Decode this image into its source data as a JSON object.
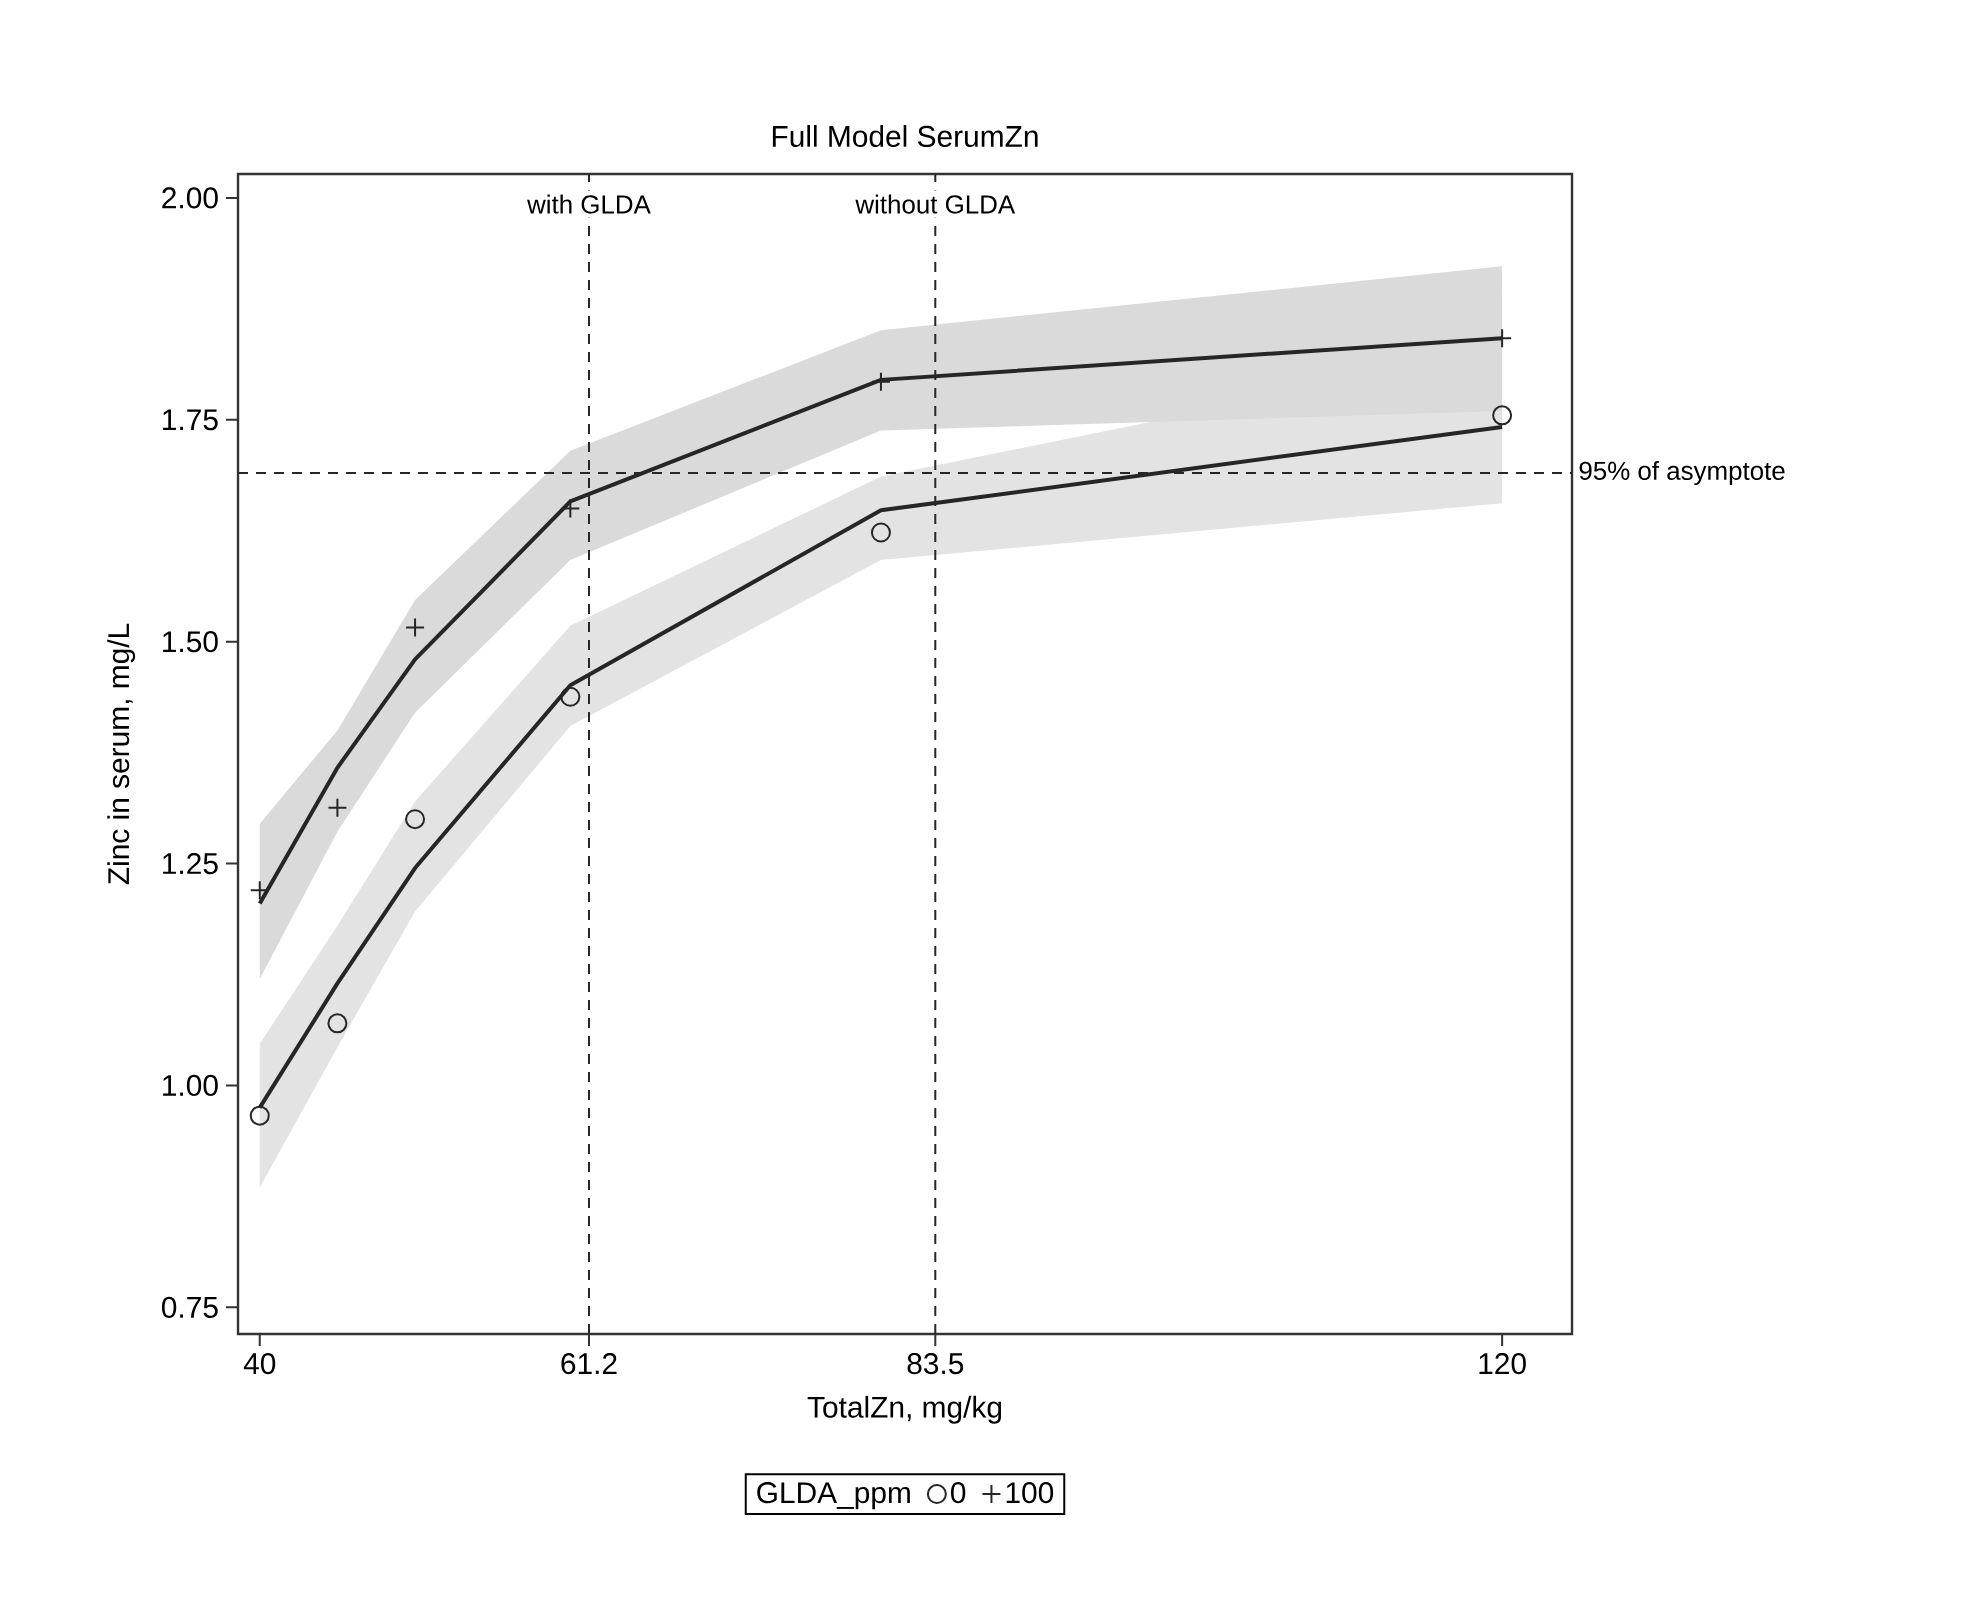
{
  "chart_data": {
    "type": "line",
    "title": "Full Model SerumZn",
    "xlabel": "TotalZn, mg/kg",
    "ylabel": "Zinc in serum, mg/L",
    "legend_title": "GLDA_ppm",
    "legend": "bottom",
    "xlim": [
      38.6,
      124.5
    ],
    "xticks": [
      40,
      61.2,
      83.5,
      120
    ],
    "ylim": [
      0.72,
      2.027
    ],
    "yticks": [
      {
        "value": 0.75,
        "label": "0.75"
      },
      {
        "value": 1.0,
        "label": "1.00"
      },
      {
        "value": 1.25,
        "label": "1.25"
      },
      {
        "value": 1.5,
        "label": "1.50"
      },
      {
        "value": 1.75,
        "label": "1.75"
      },
      {
        "value": 2.0,
        "label": "2.00"
      }
    ],
    "series": [
      {
        "color": "#262626",
        "marker": "none",
        "line_style": "solid",
        "x": [
          40,
          45,
          50,
          60,
          80,
          120
        ],
        "values": [
          0.975,
          1.115,
          1.245,
          1.451,
          1.648,
          1.742
        ],
        "lower": [
          0.885,
          1.043,
          1.196,
          1.405,
          1.592,
          1.656
        ],
        "upper": [
          1.047,
          1.18,
          1.32,
          1.518,
          1.686,
          1.828
        ]
      },
      {
        "color": "#262626",
        "marker": "none",
        "line_style": "solid",
        "x": [
          40,
          45,
          50,
          60,
          80,
          120
        ],
        "values": [
          1.205,
          1.358,
          1.48,
          1.658,
          1.795,
          1.842
        ],
        "lower": [
          1.12,
          1.286,
          1.42,
          1.592,
          1.738,
          1.76
        ],
        "upper": [
          1.295,
          1.4,
          1.547,
          1.715,
          1.851,
          1.923
        ]
      },
      {
        "type": "scatter",
        "name": "0",
        "color": "#262626",
        "marker": "circle",
        "x": [
          40,
          45,
          50,
          60,
          80,
          120
        ],
        "values": [
          0.966,
          1.07,
          1.3,
          1.438,
          1.623,
          1.755
        ]
      },
      {
        "type": "scatter",
        "name": "100",
        "color": "#262626",
        "marker": "cross",
        "x": [
          40,
          45,
          50,
          60,
          80,
          120
        ],
        "values": [
          1.22,
          1.313,
          1.516,
          1.65,
          1.793,
          1.842
        ]
      }
    ],
    "ref_lines": [
      {
        "axis": "x",
        "value": 61.2,
        "label": "with GLDA",
        "line_style": "dashed",
        "color": "#262626"
      },
      {
        "axis": "x",
        "value": 83.5,
        "label": "without GLDA",
        "line_style": "dashed",
        "color": "#262626"
      },
      {
        "axis": "y",
        "value": 1.69,
        "label": "95% of asymptote",
        "line_style": "dashed",
        "color": "#262626"
      }
    ]
  }
}
